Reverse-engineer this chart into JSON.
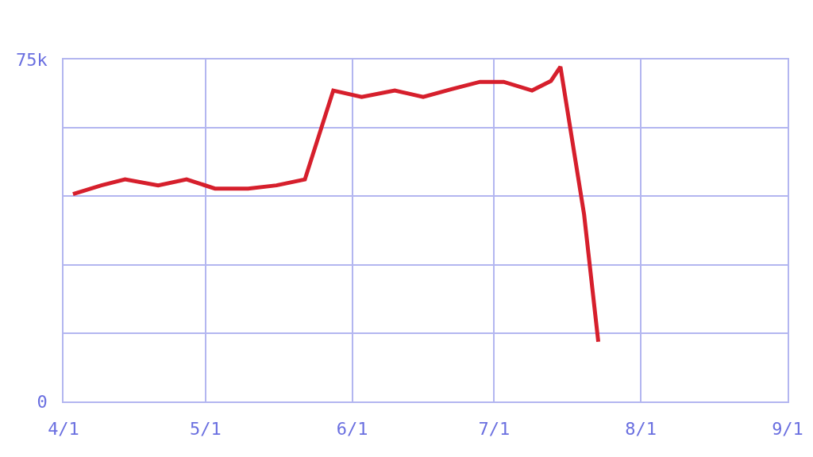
{
  "chart_data": {
    "type": "line",
    "x": [
      "--04-03",
      "--04-09",
      "--04-14",
      "--04-21",
      "--04-27",
      "--05-03",
      "--05-10",
      "--05-16",
      "--05-22",
      "--05-28",
      "--06-03",
      "--06-10",
      "--06-16",
      "--06-22",
      "--06-28",
      "--07-03",
      "--07-09",
      "--07-13",
      "--07-15",
      "--07-20",
      "--07-23"
    ],
    "series": [
      {
        "color": "#d61f2c",
        "values": [
          45.5,
          47.4,
          48.7,
          47.4,
          48.7,
          46.7,
          46.7,
          47.4,
          48.7,
          68.2,
          66.8,
          68.2,
          66.8,
          68.5,
          70.1,
          70.1,
          68.2,
          70.3,
          73.4,
          41.0,
          13.1
        ]
      }
    ],
    "ylim": [
      0,
      75
    ],
    "yticks": [
      {
        "value": 0,
        "label": "0"
      },
      {
        "value": 15,
        "label": null
      },
      {
        "value": 30,
        "label": null
      },
      {
        "value": 45,
        "label": null
      },
      {
        "value": 60,
        "label": null
      },
      {
        "value": 75,
        "label": "75k"
      }
    ],
    "xlim": [
      "--04-01",
      "--09-01"
    ],
    "xticks": [
      {
        "value": "--04-01",
        "label": "4/1"
      },
      {
        "value": "--05-01",
        "label": "5/1"
      },
      {
        "value": "--06-01",
        "label": "6/1"
      },
      {
        "value": "--07-01",
        "label": "7/1"
      },
      {
        "value": "--08-01",
        "label": "8/1"
      },
      {
        "value": "--09-01",
        "label": "9/1"
      }
    ],
    "grid": true,
    "marker": "none",
    "line_style": "solid"
  }
}
